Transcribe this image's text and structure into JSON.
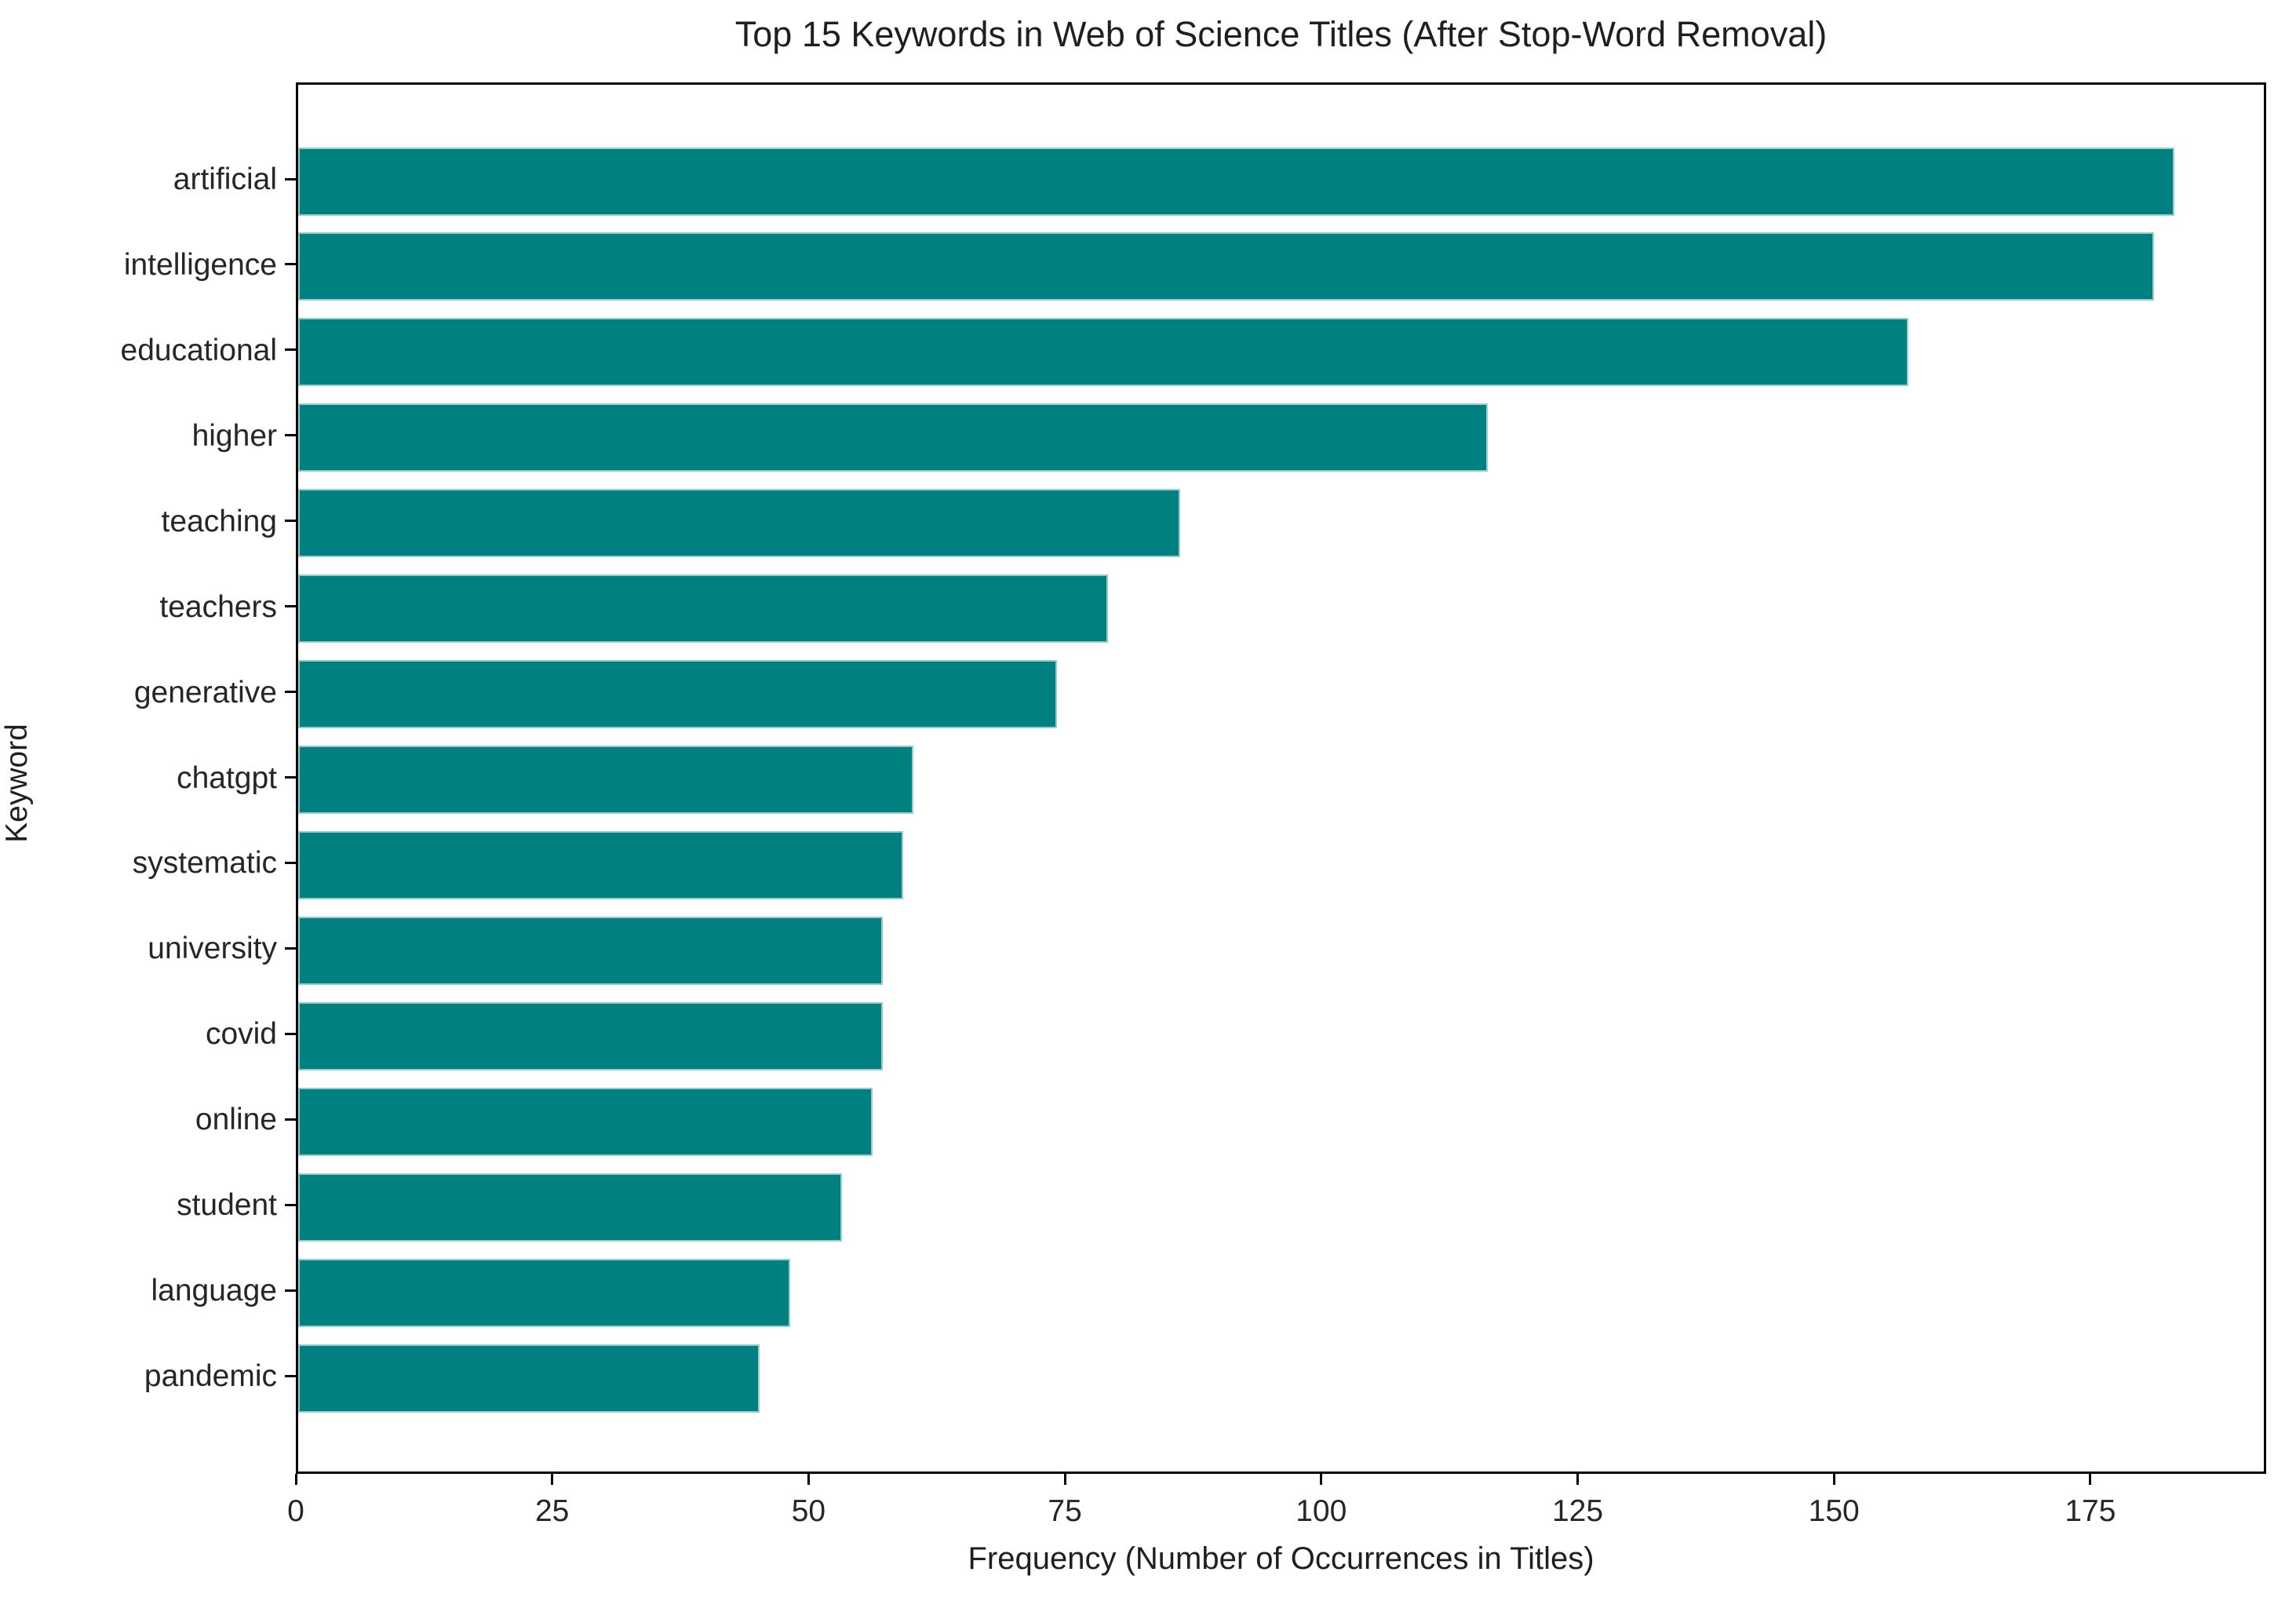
{
  "chart_data": {
    "type": "bar",
    "orientation": "horizontal",
    "title": "Top 15 Keywords in Web of Science Titles (After Stop-Word Removal)",
    "xlabel": "Frequency (Number of Occurrences in Titles)",
    "ylabel": "Keyword",
    "categories": [
      "artificial",
      "intelligence",
      "educational",
      "higher",
      "teaching",
      "teachers",
      "generative",
      "chatgpt",
      "systematic",
      "university",
      "covid",
      "online",
      "student",
      "language",
      "pandemic"
    ],
    "values": [
      183,
      181,
      157,
      116,
      86,
      79,
      74,
      60,
      59,
      57,
      57,
      56,
      53,
      48,
      45
    ],
    "x_ticks": [
      0,
      25,
      50,
      75,
      100,
      125,
      150,
      175
    ],
    "xlim": [
      0,
      192.15
    ],
    "bar_color": "#008080",
    "grid": false,
    "legend_position": "none"
  }
}
